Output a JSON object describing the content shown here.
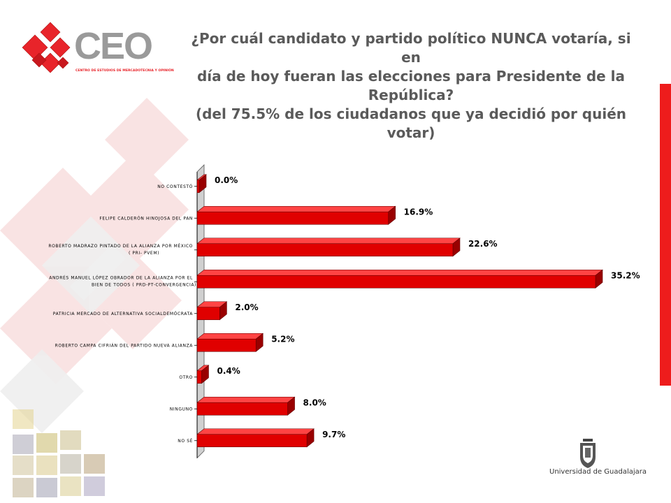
{
  "title": {
    "line1": "¿Por cuál candidato y partido político NUNCA votaría, si en",
    "line2": "día de hoy fueran las elecciones para Presidente de la",
    "line3": "República?",
    "line4": "(del 75.5% de los ciudadanos que ya decidió por quién",
    "line5": "votar)"
  },
  "logo": {
    "text": "CEO",
    "subtitle": "CENTRO DE ESTUDIOS DE MERCADOTECNIA Y OPINIÓN",
    "color": "#e8242a"
  },
  "university": {
    "name": "Universidad de Guadalajara"
  },
  "chart_data": {
    "type": "bar",
    "orientation": "horizontal",
    "title": "",
    "xlabel": "",
    "ylabel": "",
    "grid": false,
    "bar_color": "#e00000",
    "categories": [
      [
        "NO CONTESTÓ"
      ],
      [
        "FELIPE CALDERÓN HINOJOSA DEL PAN"
      ],
      [
        "ROBERTO MADRAZO PINTADO DE LA ALIANZA POR MÉXICO",
        "( PRI- PVEM)"
      ],
      [
        "ANDRÉS MANUEL LÓPEZ OBRADOR DE LA ALIANZA POR EL",
        "BIEN DE TODOS ( PRD-PT-CONVERGENCIA)"
      ],
      [
        "PATRICIA MERCADO DE ALTERNATIVA SOCIALDEMÓCRATA"
      ],
      [
        "ROBERTO CAMPA CIFRIÁN DEL PARTIDO NUEVA ALIANZA"
      ],
      [
        "OTRO"
      ],
      [
        "NINGUNO"
      ],
      [
        "NO SÉ"
      ]
    ],
    "values": [
      0.0,
      16.9,
      22.6,
      35.2,
      2.0,
      5.2,
      0.4,
      8.0,
      9.7
    ],
    "value_labels": [
      "0.0%",
      "16.9%",
      "22.6%",
      "35.2%",
      "2.0%",
      "5.2%",
      "0.4%",
      "8.0%",
      "9.7%"
    ],
    "xlim": [
      0,
      35.2
    ]
  }
}
